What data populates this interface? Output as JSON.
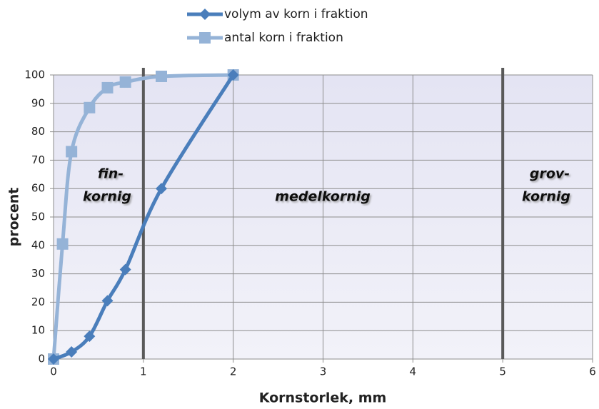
{
  "chart_data": {
    "type": "line",
    "x_label": "Kornstorlek, mm",
    "y_label": "procent",
    "xlim": [
      0,
      6
    ],
    "xticks": [
      0,
      1,
      2,
      3,
      4,
      5,
      6
    ],
    "ylim": [
      0,
      100
    ],
    "yticks": [
      0,
      10,
      20,
      30,
      40,
      50,
      60,
      70,
      80,
      90,
      100
    ],
    "grid": true,
    "legend": "top",
    "vlines": [
      1,
      5
    ],
    "annotations": [
      {
        "lines": [
          "fin-",
          "kornig"
        ]
      },
      {
        "lines": [
          "medelkornig"
        ]
      },
      {
        "lines": [
          "grov-",
          "kornig"
        ]
      }
    ],
    "series": [
      {
        "name": "volym av korn i fraktion",
        "color": "#4a7ebb",
        "marker": "diamond",
        "x": [
          0,
          0.2,
          0.4,
          0.6,
          0.8,
          1.2,
          2
        ],
        "values": [
          0,
          2.5,
          8,
          20.5,
          31.5,
          60,
          100
        ]
      },
      {
        "name": "antal korn i fraktion",
        "color": "#95b3d7",
        "marker": "square",
        "x": [
          0,
          0.1,
          0.2,
          0.4,
          0.6,
          0.8,
          1.2,
          2
        ],
        "values": [
          0,
          40.5,
          73,
          88.5,
          95.5,
          97.5,
          99.5,
          100
        ]
      }
    ]
  }
}
